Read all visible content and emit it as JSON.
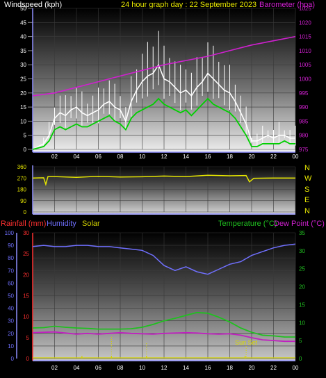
{
  "colors": {
    "wind": "#ffffff",
    "gust_line": "#00d000",
    "barometer": "#d020d0",
    "direction": "#e6e600",
    "humidity": "#7070ff",
    "temperature": "#20c020",
    "dew_point": "#c020c0",
    "rainfall_axis": "#ff3030",
    "solar": "#d0d000",
    "sunset": "#d8d800"
  },
  "header": {
    "wind_label": "Windspeed (kph)",
    "title": "24 hour graph day : 22 September 2023",
    "baro_label": "Barometer (hpa)"
  },
  "bottom_header": {
    "rainfall_label": "Rainfall (mm)",
    "humidity_label": "Humidity",
    "solar_label": "Solar",
    "temp_label": "Temperature (°C)",
    "dew_label": "Dew Point (°C)"
  },
  "compass": [
    "N",
    "W",
    "S",
    "E",
    "N"
  ],
  "sunset_label": "Sun Set",
  "chart_data": [
    {
      "type": "line",
      "title": "24 hour graph day : 22 September 2023",
      "x_ticks": [
        "02",
        "04",
        "06",
        "08",
        "10",
        "12",
        "14",
        "16",
        "18",
        "20",
        "22",
        "00"
      ],
      "x_range_hours": [
        0,
        24
      ],
      "y_left": {
        "label": "Windspeed (kph)",
        "range": [
          0,
          50
        ],
        "ticks": [
          "0",
          "5",
          "10",
          "15",
          "20",
          "25",
          "30",
          "35",
          "40",
          "45",
          "50"
        ]
      },
      "y_right": {
        "label": "Barometer (hpa)",
        "range": [
          975,
          1025
        ],
        "ticks": [
          "975",
          "980",
          "985",
          "990",
          "995",
          "1000",
          "1005",
          "1010",
          "1015",
          "1020",
          "1025"
        ]
      },
      "series": [
        {
          "name": "Windspeed (kph)",
          "x": [
            0,
            1,
            1.5,
            2,
            2.5,
            3,
            3.5,
            4,
            4.5,
            5,
            5.5,
            6,
            6.5,
            7,
            7.5,
            8,
            8.5,
            9,
            9.5,
            10,
            10.5,
            11,
            11.5,
            12,
            12.5,
            13,
            13.5,
            14,
            14.5,
            15,
            15.5,
            16,
            16.5,
            17,
            17.5,
            18,
            18.5,
            19,
            19.5,
            20,
            20.5,
            21,
            21.5,
            22,
            22.5,
            23,
            23.5,
            24
          ],
          "y": [
            0,
            2,
            5,
            11,
            13,
            12,
            14,
            15,
            13,
            12,
            13,
            14,
            16,
            17,
            15,
            14,
            10,
            17,
            21,
            24,
            26,
            27,
            30,
            25,
            24,
            22,
            20,
            21,
            19,
            22,
            24,
            27,
            25,
            23,
            21,
            20,
            17,
            13,
            9,
            3,
            3,
            4,
            5,
            4,
            5,
            5,
            4,
            4
          ]
        },
        {
          "name": "Gust line",
          "x": [
            0,
            1,
            1.5,
            2,
            2.5,
            3,
            3.5,
            4,
            4.5,
            5,
            5.5,
            6,
            6.5,
            7,
            7.5,
            8,
            8.5,
            9,
            9.5,
            10,
            10.5,
            11,
            11.5,
            12,
            12.5,
            13,
            13.5,
            14,
            14.5,
            15,
            15.5,
            16,
            16.5,
            17,
            17.5,
            18,
            18.5,
            19,
            19.5,
            20,
            20.5,
            21,
            21.5,
            22,
            22.5,
            23,
            23.5,
            24
          ],
          "y": [
            0,
            1,
            3,
            7,
            8,
            7,
            8,
            9,
            8,
            8,
            9,
            10,
            11,
            12,
            10,
            9,
            7,
            11,
            13,
            14,
            15,
            16,
            18,
            16,
            15,
            14,
            13,
            14,
            12,
            14,
            16,
            18,
            16,
            15,
            14,
            13,
            11,
            8,
            5,
            1,
            1,
            2,
            2,
            2,
            2,
            3,
            2,
            2
          ]
        },
        {
          "name": "Barometer (hpa)",
          "x": [
            0,
            2,
            4,
            6,
            8,
            10,
            12,
            14,
            16,
            18,
            20,
            22,
            24
          ],
          "y": [
            994,
            995,
            997,
            999,
            1001,
            1003,
            1005,
            1006.5,
            1008,
            1010,
            1012,
            1013.5,
            1015
          ]
        }
      ]
    },
    {
      "type": "line",
      "y_ticks": [
        "0",
        "90",
        "180",
        "270",
        "360"
      ],
      "y_range": [
        0,
        360
      ],
      "x_range_hours": [
        0,
        24
      ],
      "series": [
        {
          "name": "Wind direction",
          "x": [
            0,
            1,
            1.2,
            1.4,
            2,
            4,
            6,
            8,
            10,
            12,
            14,
            16,
            18,
            19.5,
            19.8,
            20.2,
            22,
            24
          ],
          "y": [
            270,
            272,
            220,
            282,
            282,
            276,
            284,
            278,
            280,
            286,
            282,
            292,
            288,
            290,
            240,
            268,
            270,
            270
          ]
        }
      ]
    },
    {
      "type": "line",
      "x_ticks": [
        "02",
        "04",
        "06",
        "08",
        "10",
        "12",
        "14",
        "16",
        "18",
        "20",
        "22",
        "00"
      ],
      "x_range_hours": [
        0,
        24
      ],
      "y_left_rain": {
        "label": "Rainfall (mm)",
        "range": [
          0,
          30
        ],
        "ticks": [
          "0",
          "5",
          "10",
          "15",
          "20",
          "25",
          "30"
        ]
      },
      "y_left_humidity": {
        "label": "Humidity",
        "range": [
          0,
          100
        ],
        "ticks": [
          "0",
          "10",
          "20",
          "30",
          "40",
          "50",
          "60",
          "70",
          "80",
          "90",
          "100"
        ]
      },
      "y_right": {
        "label": "Temperature (°C)",
        "range": [
          0,
          35
        ],
        "ticks": [
          "0",
          "5",
          "10",
          "15",
          "20",
          "25",
          "30",
          "35"
        ]
      },
      "series": [
        {
          "name": "Humidity",
          "x": [
            0,
            1,
            2,
            3,
            4,
            5,
            6,
            7,
            8,
            9,
            10,
            11,
            12,
            13,
            14,
            15,
            16,
            17,
            18,
            19,
            20,
            21,
            22,
            23,
            24
          ],
          "y": [
            89,
            90,
            89,
            89,
            90,
            90,
            89,
            89,
            88,
            87,
            86,
            82,
            74,
            70,
            73,
            69,
            67,
            71,
            75,
            77,
            82,
            85,
            88,
            90,
            91
          ]
        },
        {
          "name": "Temperature (°C)",
          "x": [
            0,
            1,
            2,
            3,
            4,
            5,
            6,
            7,
            8,
            9,
            10,
            11,
            12,
            13,
            14,
            15,
            16,
            17,
            18,
            19,
            20,
            21,
            22,
            23,
            24
          ],
          "y": [
            8.5,
            8.6,
            9,
            8.7,
            8.5,
            8.4,
            8.2,
            8.2,
            8.2,
            8.3,
            8.7,
            9.5,
            10.5,
            11.2,
            12,
            12.8,
            12.6,
            11.5,
            10.2,
            8.5,
            7.3,
            6.5,
            6.3,
            6,
            6
          ]
        },
        {
          "name": "Dew Point (°C)",
          "x": [
            0,
            1,
            2,
            3,
            4,
            5,
            6,
            7,
            8,
            9,
            10,
            11,
            12,
            13,
            14,
            15,
            16,
            17,
            18,
            19,
            20,
            21,
            22,
            23,
            24
          ],
          "y": [
            7.2,
            7.3,
            7.4,
            7.1,
            6.8,
            7,
            6.8,
            7,
            7.2,
            7.0,
            6.9,
            6.8,
            7,
            7.1,
            7.2,
            7.1,
            6.9,
            6.8,
            6.9,
            6.5,
            5.8,
            5.2,
            5,
            4.8,
            4.8
          ]
        },
        {
          "name": "Solar",
          "x": [
            7.2,
            10.4
          ],
          "y": [
            4,
            3
          ]
        }
      ],
      "annotations": [
        "Sun Set"
      ]
    }
  ]
}
